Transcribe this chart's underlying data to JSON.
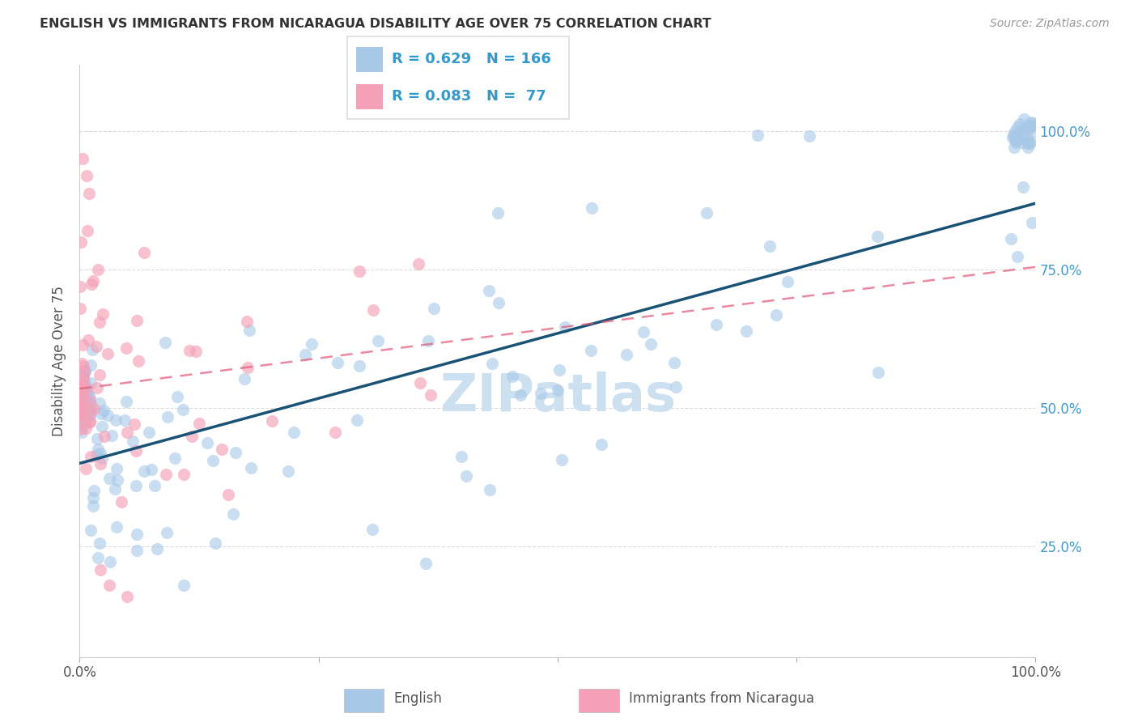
{
  "title": "ENGLISH VS IMMIGRANTS FROM NICARAGUA DISABILITY AGE OVER 75 CORRELATION CHART",
  "source": "Source: ZipAtlas.com",
  "ylabel": "Disability Age Over 75",
  "english_R": 0.629,
  "english_N": 166,
  "nicaragua_R": 0.083,
  "nicaragua_N": 77,
  "english_color": "#a8c8e8",
  "english_line_color": "#1a5276",
  "nicaragua_color": "#f4a0b8",
  "nicaragua_line_color": "#e05878",
  "watermark_color": "#cce0f0",
  "grid_color": "#d8d8d8",
  "title_color": "#333333",
  "axis_label_color": "#555555",
  "right_tick_color": "#4499cc",
  "source_color": "#999999",
  "legend_box_color": "#dddddd",
  "xmin": 0.0,
  "xmax": 1.0,
  "ymin": 0.05,
  "ymax": 1.12,
  "en_line_x0": 0.0,
  "en_line_y0": 0.4,
  "en_line_x1": 1.0,
  "en_line_y1": 0.87,
  "nic_line_x0": 0.0,
  "nic_line_y0": 0.535,
  "nic_line_x1": 1.0,
  "nic_line_y1": 0.755
}
